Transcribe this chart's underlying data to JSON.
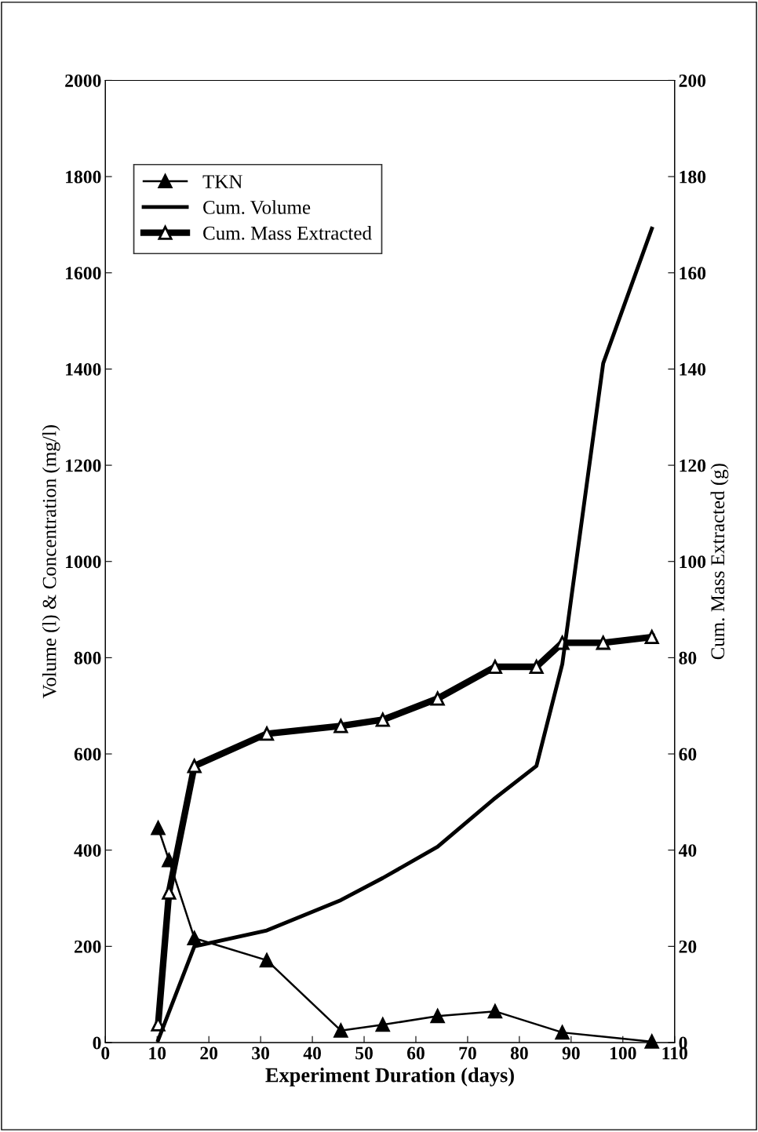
{
  "chart_data": {
    "type": "line",
    "xlabel": "Experiment Duration (days)",
    "ylabel": "Volume (l) & Concentration (mg/l)",
    "y2label": "Cum. Mass Extracted (g)",
    "xlim": [
      0,
      110
    ],
    "xticks": [
      0,
      10,
      20,
      30,
      40,
      50,
      60,
      70,
      80,
      90,
      100,
      110
    ],
    "ylim": [
      0,
      2000
    ],
    "yticks": [
      0,
      200,
      400,
      600,
      800,
      1000,
      1200,
      1400,
      1600,
      1800,
      2000
    ],
    "y2lim": [
      0,
      200
    ],
    "y2ticks": [
      0,
      20,
      40,
      60,
      80,
      100,
      120,
      140,
      160,
      180,
      200
    ],
    "grid": false,
    "legend": "top left",
    "series": [
      {
        "name": "TKN",
        "color": "#000000",
        "marker": "triangle",
        "x": [
          10.2,
          12.3,
          17.2,
          31.2,
          45.5,
          53.6,
          64.2,
          75.3,
          88.3,
          105.6
        ],
        "values": [
          446,
          379,
          217,
          171,
          25,
          37,
          55,
          65,
          21,
          2
        ]
      },
      {
        "name": "Cum. Volume",
        "color": "#000000",
        "marker": "none",
        "x": [
          10.2,
          17.2,
          31.2,
          45.5,
          53.6,
          64.2,
          75.3,
          83.3,
          88.3,
          96.2,
          105.6
        ],
        "values": [
          5,
          200,
          233,
          296,
          342,
          407,
          508,
          575,
          787,
          1412,
          1692
        ]
      },
      {
        "name": "Cum. Mass Extracted",
        "color": "#000000",
        "marker": "triangle",
        "axis": "y2",
        "x": [
          10.2,
          12.3,
          17.2,
          31.2,
          45.5,
          53.6,
          64.2,
          75.3,
          83.3,
          88.3,
          96.2,
          105.6
        ],
        "values": [
          3.8,
          31.2,
          57.5,
          64.2,
          65.8,
          67.1,
          71.5,
          78.1,
          78.1,
          83.1,
          83.1,
          84.3
        ]
      }
    ]
  }
}
